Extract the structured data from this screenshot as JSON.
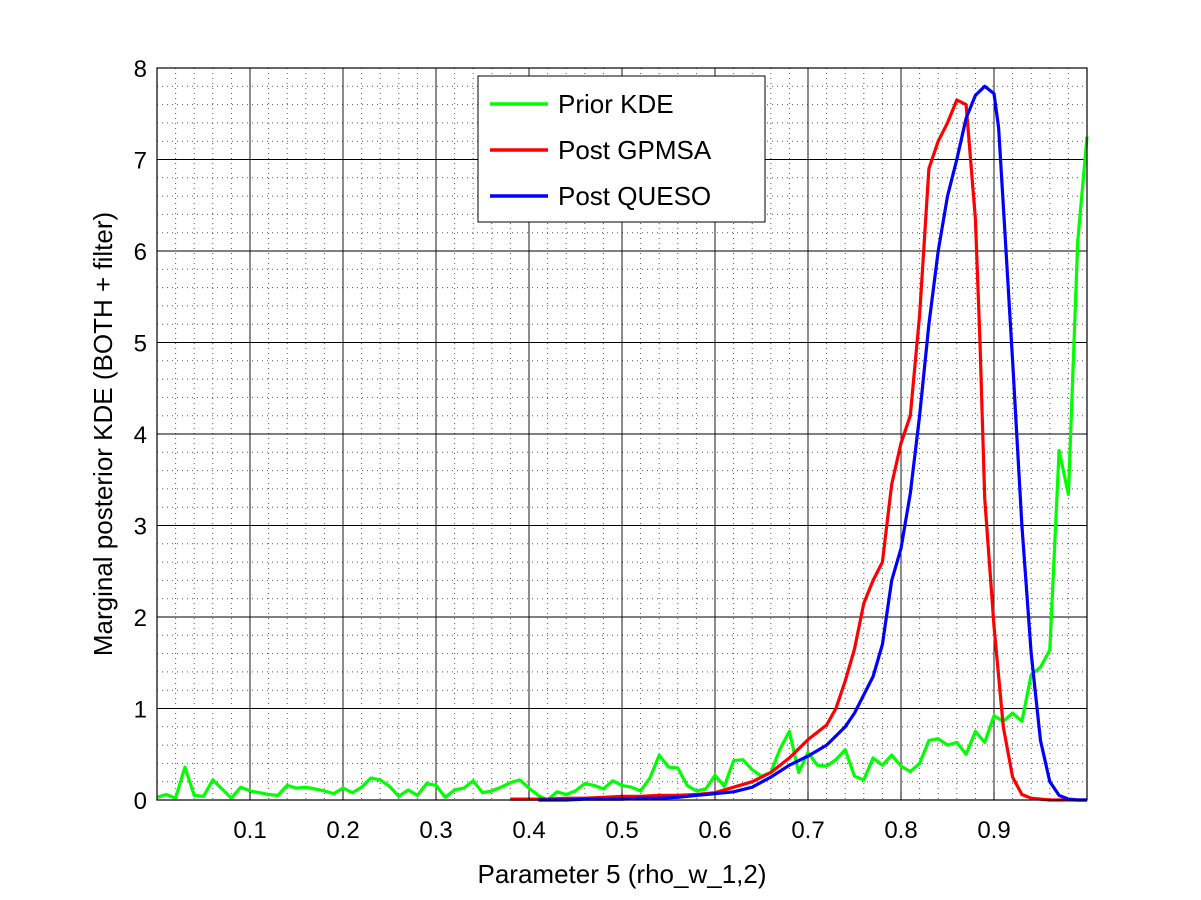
{
  "chart_data": {
    "type": "line",
    "title": "",
    "xlabel": "Parameter 5 (rho_w_1,2)",
    "ylabel": "Marginal posterior KDE (BOTH + filter)",
    "xlim": [
      0,
      1
    ],
    "ylim": [
      0,
      8
    ],
    "x_ticks": [
      0.1,
      0.2,
      0.3,
      0.4,
      0.5,
      0.6,
      0.7,
      0.8,
      0.9
    ],
    "x_tick_labels": [
      "0.1",
      "0.2",
      "0.3",
      "0.4",
      "0.5",
      "0.6",
      "0.7",
      "0.8",
      "0.9"
    ],
    "y_ticks": [
      0,
      1,
      2,
      3,
      4,
      5,
      6,
      7,
      8
    ],
    "y_tick_labels": [
      "0",
      "1",
      "2",
      "3",
      "4",
      "5",
      "6",
      "7",
      "8"
    ],
    "grid": "major solid, minor dotted",
    "legend_position": "top-center",
    "series": [
      {
        "name": "Prior KDE",
        "color": "#00ff00",
        "x": [
          0.0,
          0.01,
          0.02,
          0.03,
          0.04,
          0.05,
          0.06,
          0.07,
          0.08,
          0.09,
          0.1,
          0.11,
          0.12,
          0.13,
          0.14,
          0.15,
          0.16,
          0.17,
          0.18,
          0.19,
          0.2,
          0.21,
          0.22,
          0.23,
          0.24,
          0.25,
          0.26,
          0.27,
          0.28,
          0.29,
          0.3,
          0.31,
          0.32,
          0.33,
          0.34,
          0.35,
          0.36,
          0.37,
          0.38,
          0.39,
          0.4,
          0.41,
          0.42,
          0.43,
          0.44,
          0.45,
          0.46,
          0.47,
          0.48,
          0.49,
          0.5,
          0.51,
          0.52,
          0.53,
          0.54,
          0.55,
          0.56,
          0.57,
          0.58,
          0.59,
          0.6,
          0.61,
          0.62,
          0.63,
          0.64,
          0.65,
          0.66,
          0.67,
          0.68,
          0.69,
          0.7,
          0.71,
          0.72,
          0.73,
          0.74,
          0.75,
          0.76,
          0.77,
          0.78,
          0.79,
          0.8,
          0.81,
          0.82,
          0.83,
          0.84,
          0.85,
          0.86,
          0.87,
          0.88,
          0.89,
          0.9,
          0.91,
          0.92,
          0.93,
          0.94,
          0.95,
          0.96,
          0.97,
          0.98,
          0.99,
          1.0
        ],
        "y": [
          0.03,
          0.06,
          0.02,
          0.36,
          0.05,
          0.04,
          0.22,
          0.12,
          0.02,
          0.14,
          0.1,
          0.08,
          0.06,
          0.05,
          0.16,
          0.13,
          0.14,
          0.12,
          0.1,
          0.07,
          0.13,
          0.08,
          0.14,
          0.24,
          0.22,
          0.15,
          0.04,
          0.11,
          0.05,
          0.18,
          0.16,
          0.03,
          0.11,
          0.13,
          0.21,
          0.08,
          0.1,
          0.14,
          0.19,
          0.22,
          0.13,
          0.05,
          0.0,
          0.09,
          0.06,
          0.1,
          0.18,
          0.16,
          0.12,
          0.21,
          0.16,
          0.14,
          0.1,
          0.24,
          0.49,
          0.36,
          0.35,
          0.16,
          0.1,
          0.12,
          0.27,
          0.15,
          0.43,
          0.44,
          0.33,
          0.26,
          0.3,
          0.56,
          0.75,
          0.3,
          0.52,
          0.38,
          0.37,
          0.44,
          0.55,
          0.26,
          0.22,
          0.46,
          0.38,
          0.49,
          0.37,
          0.31,
          0.4,
          0.65,
          0.67,
          0.6,
          0.63,
          0.5,
          0.75,
          0.63,
          0.92,
          0.86,
          0.95,
          0.86,
          1.37,
          1.45,
          1.64,
          3.82,
          3.34,
          6.1,
          7.25
        ]
      },
      {
        "name": "Post GPMSA",
        "color": "#ff0000",
        "x": [
          0.38,
          0.4,
          0.42,
          0.44,
          0.46,
          0.48,
          0.5,
          0.52,
          0.54,
          0.56,
          0.58,
          0.6,
          0.62,
          0.64,
          0.66,
          0.68,
          0.7,
          0.72,
          0.73,
          0.74,
          0.75,
          0.76,
          0.77,
          0.78,
          0.79,
          0.8,
          0.81,
          0.82,
          0.83,
          0.84,
          0.85,
          0.86,
          0.87,
          0.88,
          0.885,
          0.89,
          0.9,
          0.91,
          0.92,
          0.93,
          0.94,
          0.95,
          0.96,
          0.97,
          0.98,
          0.99,
          1.0
        ],
        "y": [
          0.01,
          0.01,
          0.01,
          0.02,
          0.02,
          0.03,
          0.04,
          0.04,
          0.05,
          0.05,
          0.06,
          0.08,
          0.14,
          0.2,
          0.3,
          0.46,
          0.66,
          0.82,
          1.0,
          1.3,
          1.65,
          2.15,
          2.4,
          2.6,
          3.45,
          3.9,
          4.2,
          5.3,
          6.9,
          7.2,
          7.4,
          7.65,
          7.6,
          6.35,
          5.0,
          3.3,
          1.9,
          0.8,
          0.25,
          0.06,
          0.02,
          0.01,
          0.0,
          0.0,
          0.0,
          0.0,
          0.0
        ]
      },
      {
        "name": "Post QUESO",
        "color": "#0000ff",
        "x": [
          0.41,
          0.44,
          0.46,
          0.48,
          0.5,
          0.52,
          0.54,
          0.56,
          0.58,
          0.6,
          0.62,
          0.64,
          0.66,
          0.68,
          0.7,
          0.72,
          0.74,
          0.75,
          0.76,
          0.77,
          0.78,
          0.79,
          0.8,
          0.81,
          0.82,
          0.83,
          0.84,
          0.85,
          0.86,
          0.87,
          0.88,
          0.89,
          0.9,
          0.905,
          0.91,
          0.92,
          0.93,
          0.94,
          0.95,
          0.96,
          0.97,
          0.98,
          0.99,
          1.0
        ],
        "y": [
          0.0,
          0.0,
          0.01,
          0.01,
          0.01,
          0.02,
          0.02,
          0.03,
          0.05,
          0.07,
          0.09,
          0.14,
          0.25,
          0.38,
          0.48,
          0.6,
          0.8,
          0.95,
          1.15,
          1.35,
          1.7,
          2.4,
          2.75,
          3.35,
          4.2,
          5.2,
          6.0,
          6.6,
          7.0,
          7.45,
          7.7,
          7.8,
          7.72,
          7.35,
          6.5,
          4.8,
          3.0,
          1.6,
          0.65,
          0.2,
          0.05,
          0.01,
          0.0,
          0.0
        ]
      }
    ]
  }
}
